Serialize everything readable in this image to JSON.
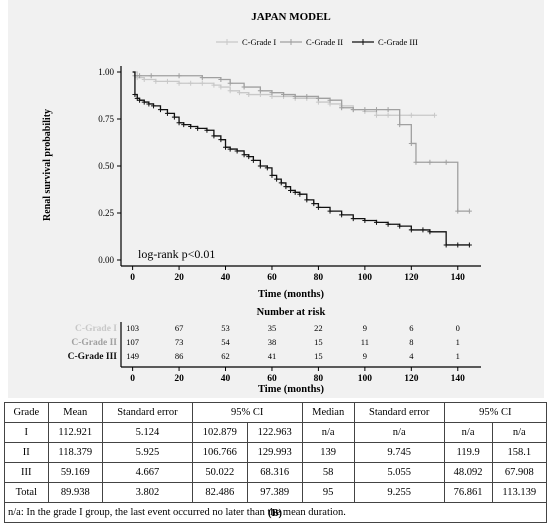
{
  "chart_data": [
    {
      "type": "line",
      "title": "JAPAN MODEL",
      "xlabel": "Time (months)",
      "ylabel": "Renal survival probability",
      "xlim": [
        -5,
        150
      ],
      "ylim": [
        0,
        1.0
      ],
      "x_ticks": [
        0,
        20,
        40,
        60,
        80,
        100,
        120,
        140
      ],
      "y_ticks": [
        "0.00",
        "0.25",
        "0.50",
        "0.75",
        "1.00"
      ],
      "legend_position": "top-right",
      "annotation": "log-rank p<0.01",
      "series": [
        {
          "name": "C-Grade I",
          "color": "#c8c8c8",
          "x": [
            0,
            2,
            5,
            10,
            15,
            20,
            25,
            30,
            35,
            38,
            42,
            46,
            50,
            55,
            60,
            65,
            70,
            75,
            80,
            85,
            90,
            95,
            100,
            105,
            110,
            120,
            130
          ],
          "y": [
            1.0,
            0.97,
            0.96,
            0.95,
            0.95,
            0.94,
            0.94,
            0.94,
            0.93,
            0.92,
            0.9,
            0.89,
            0.88,
            0.88,
            0.87,
            0.87,
            0.86,
            0.86,
            0.84,
            0.83,
            0.82,
            0.8,
            0.79,
            0.77,
            0.77,
            0.77,
            0.77
          ]
        },
        {
          "name": "C-Grade II",
          "color": "#a0a0a0",
          "x": [
            0,
            1,
            3,
            8,
            20,
            30,
            38,
            42,
            48,
            55,
            60,
            65,
            70,
            75,
            80,
            85,
            90,
            95,
            100,
            105,
            110,
            115,
            120,
            122,
            128,
            135,
            140,
            145
          ],
          "y": [
            1.0,
            0.98,
            0.98,
            0.98,
            0.98,
            0.97,
            0.96,
            0.94,
            0.92,
            0.9,
            0.89,
            0.88,
            0.87,
            0.87,
            0.86,
            0.85,
            0.81,
            0.8,
            0.8,
            0.8,
            0.8,
            0.72,
            0.62,
            0.52,
            0.52,
            0.52,
            0.26,
            0.26
          ]
        },
        {
          "name": "C-Grade III",
          "color": "#111111",
          "x": [
            0,
            1,
            2,
            3,
            5,
            7,
            9,
            12,
            15,
            18,
            20,
            22,
            25,
            28,
            32,
            35,
            38,
            40,
            42,
            45,
            48,
            50,
            52,
            55,
            58,
            60,
            62,
            64,
            66,
            68,
            70,
            72,
            75,
            78,
            80,
            85,
            90,
            95,
            100,
            105,
            110,
            115,
            120,
            125,
            128,
            135,
            140,
            145
          ],
          "y": [
            1.0,
            0.88,
            0.86,
            0.85,
            0.84,
            0.83,
            0.82,
            0.8,
            0.78,
            0.76,
            0.73,
            0.72,
            0.71,
            0.7,
            0.69,
            0.66,
            0.64,
            0.6,
            0.59,
            0.58,
            0.56,
            0.55,
            0.53,
            0.5,
            0.49,
            0.45,
            0.43,
            0.41,
            0.39,
            0.37,
            0.36,
            0.35,
            0.32,
            0.3,
            0.28,
            0.26,
            0.24,
            0.22,
            0.21,
            0.2,
            0.19,
            0.18,
            0.16,
            0.16,
            0.15,
            0.08,
            0.08,
            0.08
          ]
        }
      ]
    },
    {
      "type": "table",
      "title": "Number at risk",
      "xlabel": "Time (months)",
      "x_ticks": [
        0,
        20,
        40,
        60,
        80,
        100,
        120,
        140
      ],
      "rows": [
        {
          "label": "C-Grade I",
          "color": "#c8c8c8",
          "values": [
            103,
            67,
            53,
            35,
            22,
            9,
            6,
            0
          ]
        },
        {
          "label": "C-Grade II",
          "color": "#a0a0a0",
          "values": [
            107,
            73,
            54,
            38,
            15,
            11,
            8,
            1
          ]
        },
        {
          "label": "C-Grade III",
          "color": "#111111",
          "values": [
            149,
            86,
            62,
            41,
            15,
            9,
            4,
            1
          ]
        }
      ]
    }
  ],
  "table": {
    "headers": [
      "Grade",
      "Mean",
      "Standard error",
      "95% CI",
      "Median",
      "Standard error",
      "95% CI"
    ],
    "rows": [
      [
        "I",
        "112.921",
        "5.124",
        "102.879",
        "122.963",
        "n/a",
        "n/a",
        "n/a",
        "n/a"
      ],
      [
        "II",
        "118.379",
        "5.925",
        "106.766",
        "129.993",
        "139",
        "9.745",
        "119.9",
        "158.1"
      ],
      [
        "III",
        "59.169",
        "4.667",
        "50.022",
        "68.316",
        "58",
        "5.055",
        "48.092",
        "67.908"
      ],
      [
        "Total",
        "89.938",
        "3.802",
        "82.486",
        "97.389",
        "95",
        "9.255",
        "76.861",
        "113.139"
      ]
    ],
    "footnote": "n/a: In the grade I group, the last event occurred no later than the mean duration."
  },
  "panel_label": "(B)"
}
